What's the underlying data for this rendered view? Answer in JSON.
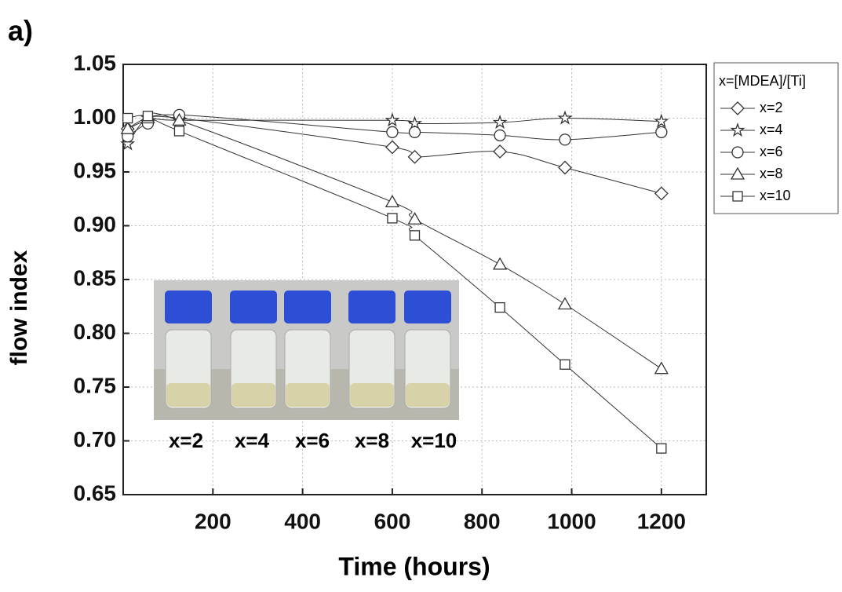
{
  "chart_data": {
    "type": "line",
    "panel_label": "a)",
    "x_label": "Time (hours)",
    "y_label": "flow index",
    "x": [
      10,
      55,
      125,
      600,
      650,
      840,
      985,
      1200
    ],
    "xlim": [
      0,
      1300
    ],
    "ylim": [
      0.65,
      1.05
    ],
    "xticks": [
      200,
      400,
      600,
      800,
      1000,
      1200
    ],
    "yticks": [
      0.65,
      {
        "value": 0.7,
        "label": "0.70"
      },
      0.75,
      {
        "value": 0.8,
        "label": "0.80"
      },
      0.85,
      {
        "value": 0.9,
        "label": "0.90"
      },
      0.95,
      {
        "value": 1.0,
        "label": "1.00"
      },
      1.05
    ],
    "grid": true,
    "legend_title": "x=[MDEA]/[Ti]",
    "legend_position": "outside-right",
    "series": [
      {
        "name": "x=2",
        "marker": "diamond",
        "color": "#333333",
        "values": [
          0.99,
          0.998,
          1.0,
          0.973,
          0.964,
          0.969,
          0.954,
          0.93
        ]
      },
      {
        "name": "x=4",
        "marker": "star",
        "color": "#333333",
        "values": [
          0.976,
          1.0,
          0.998,
          0.998,
          0.995,
          0.996,
          1.0,
          0.997
        ]
      },
      {
        "name": "x=6",
        "marker": "circle",
        "color": "#333333",
        "values": [
          0.983,
          0.995,
          1.003,
          0.987,
          0.987,
          0.984,
          0.98,
          0.987
        ]
      },
      {
        "name": "x=8",
        "marker": "triangle",
        "color": "#333333",
        "values": [
          0.99,
          1.0,
          0.998,
          0.922,
          0.906,
          0.864,
          0.827,
          0.767
        ]
      },
      {
        "name": "x=10",
        "marker": "square",
        "color": "#333333",
        "values": [
          1.0,
          1.002,
          0.988,
          0.907,
          0.891,
          0.824,
          0.771,
          0.693
        ]
      }
    ],
    "inset_labels": [
      "x=2",
      "x=4",
      "x=6",
      "x=8",
      "x=10"
    ]
  }
}
